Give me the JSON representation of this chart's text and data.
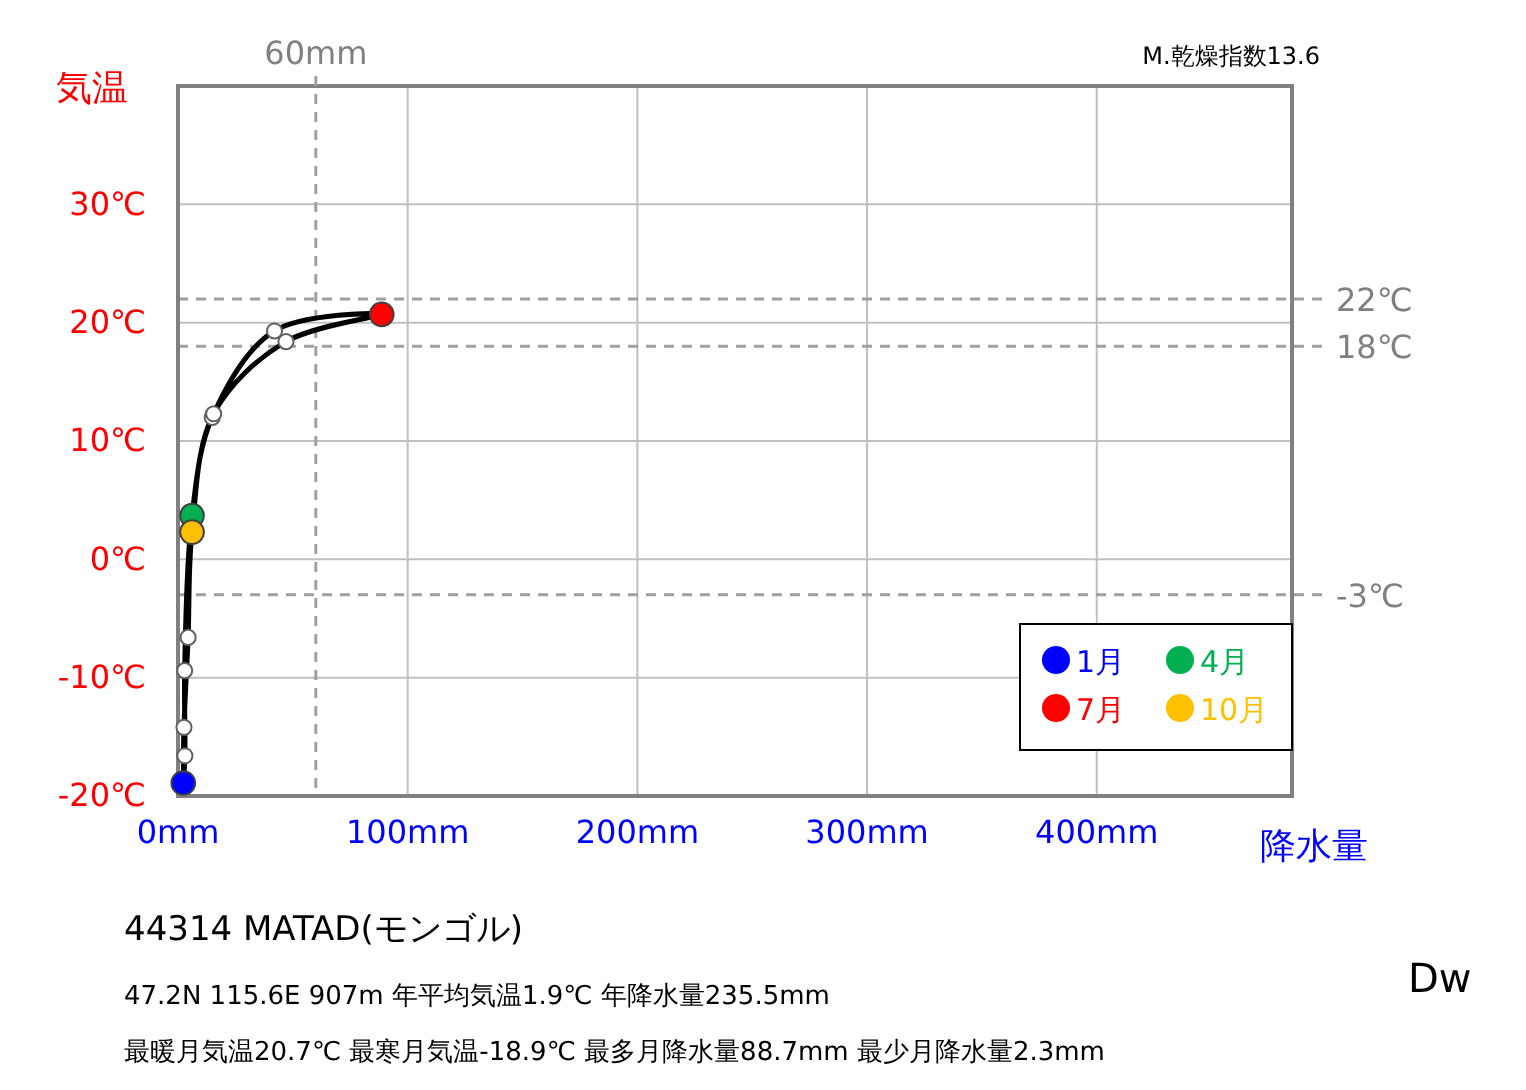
{
  "chart_data": {
    "type": "line",
    "ylabel": "気温",
    "xlabel": "降水量",
    "xlim": [
      0,
      485
    ],
    "ylim": [
      -20,
      40
    ],
    "xticks": [
      {
        "value": 0,
        "label": "0mm"
      },
      {
        "value": 100,
        "label": "100mm"
      },
      {
        "value": 200,
        "label": "200mm"
      },
      {
        "value": 300,
        "label": "300mm"
      },
      {
        "value": 400,
        "label": "400mm"
      }
    ],
    "yticks": [
      {
        "value": -20,
        "label": "-20℃"
      },
      {
        "value": -10,
        "label": "-10℃"
      },
      {
        "value": 0,
        "label": "0℃"
      },
      {
        "value": 10,
        "label": "10℃"
      },
      {
        "value": 20,
        "label": "20℃"
      },
      {
        "value": 30,
        "label": "30℃"
      }
    ],
    "grid": true,
    "legend": "bottom right",
    "marker": "circle",
    "series": [
      {
        "type": "scatter",
        "color": "#ffffff",
        "x": [
          null,
          3.0,
          2.9,
          null,
          14.9,
          42.0,
          null,
          47.0,
          15.5,
          null,
          4.4,
          2.6
        ],
        "values": [
          null,
          -16.6,
          -9.4,
          null,
          12.0,
          19.3,
          null,
          18.4,
          12.3,
          null,
          -6.6,
          -14.2
        ]
      },
      {
        "type": "scatter",
        "name": "1月",
        "color": "#0000ff",
        "x": [
          2.3
        ],
        "values": [
          -18.9
        ]
      },
      {
        "type": "scatter",
        "name": "4月",
        "color": "#00b050",
        "x": [
          6.1
        ],
        "values": [
          3.7
        ]
      },
      {
        "type": "scatter",
        "name": "7月",
        "color": "#ff0000",
        "x": [
          88.7
        ],
        "values": [
          20.7
        ]
      },
      {
        "type": "scatter",
        "name": "10月",
        "color": "#ffc000",
        "x": [
          6.1
        ],
        "values": [
          2.3
        ]
      }
    ],
    "ref_lines": [
      {
        "axis": "y",
        "value": 22,
        "label": "22℃",
        "color": "#a0a0a0",
        "line_style": "dashed"
      },
      {
        "axis": "y",
        "value": 18,
        "label": "18℃",
        "color": "#a0a0a0",
        "line_style": "dashed"
      },
      {
        "axis": "y",
        "value": -3,
        "label": "-3℃",
        "color": "#a0a0a0",
        "line_style": "dashed"
      },
      {
        "axis": "x",
        "value": 60,
        "label": "60mm",
        "color": "#a0a0a0",
        "line_style": "dashed"
      }
    ],
    "annotations": [
      "M.乾燥指数13.6",
      "44314  MATAD(モンゴル)",
      "47.2N  115.6E 907m  年平均気温1.9℃ 年降水量235.5mm",
      "最暖月気温20.7℃ 最寒月気温-18.9℃ 最多月降水量88.7mm 最少月降水量2.3mm",
      "Dw"
    ]
  }
}
